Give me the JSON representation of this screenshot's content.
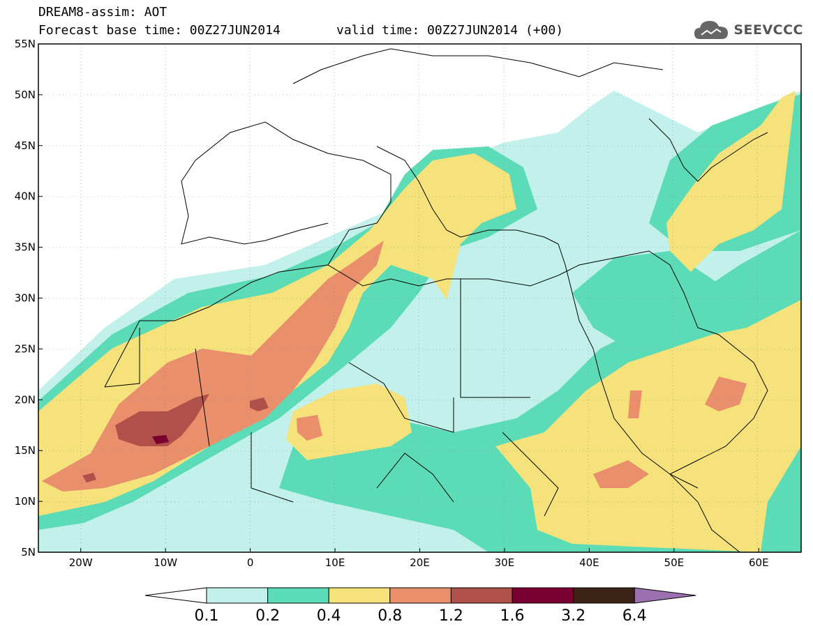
{
  "header": {
    "title": "DREAM8-assim: AOT",
    "base_time": "Forecast base time: 00Z27JUN2014",
    "valid_time": "valid time: 00Z27JUN2014 (+00)",
    "logo_text": "SEEVCCC",
    "logo_icon": "cloud-icon"
  },
  "map": {
    "variable": "AOT",
    "lon_range": [
      -25,
      65
    ],
    "lat_range": [
      5,
      55
    ],
    "lat_labels": [
      "55N",
      "50N",
      "45N",
      "40N",
      "35N",
      "30N",
      "25N",
      "20N",
      "15N",
      "10N",
      "5N"
    ],
    "lon_labels": [
      "20W",
      "10W",
      "0",
      "10E",
      "20E",
      "30E",
      "40E",
      "50E",
      "60E"
    ],
    "background_color": "#ffffff",
    "boundary_color": "#000000"
  },
  "colorbar": {
    "levels": [
      "0.1",
      "0.2",
      "0.4",
      "0.8",
      "1.2",
      "1.6",
      "3.2",
      "6.4"
    ],
    "colors": [
      "#c2f0ea",
      "#5cdcb6",
      "#f6e27a",
      "#e98f6c",
      "#b0504a",
      "#7a0030",
      "#3b2416",
      "#9b70b0"
    ],
    "below_color": "#ffffff",
    "above_color": "#9b70b0"
  }
}
